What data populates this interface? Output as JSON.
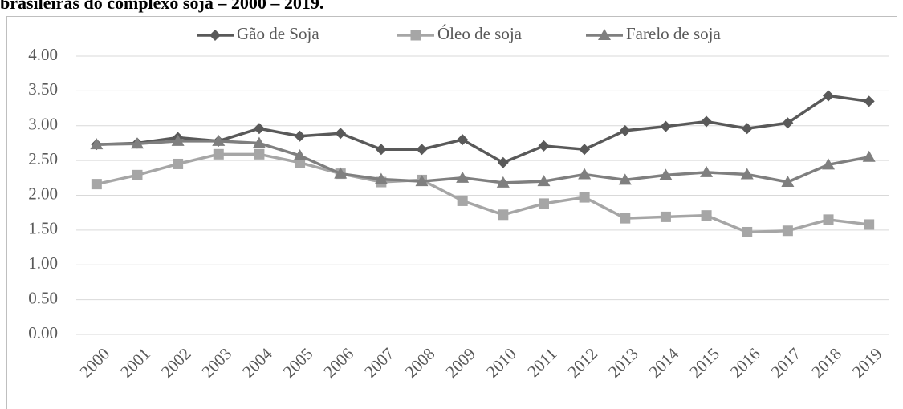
{
  "chart_data": {
    "type": "line",
    "title": "brasileiras do complexo soja – 2000 – 2019.",
    "categories": [
      "2000",
      "2001",
      "2002",
      "2003",
      "2004",
      "2005",
      "2006",
      "2007",
      "2008",
      "2009",
      "2010",
      "2011",
      "2012",
      "2013",
      "2014",
      "2015",
      "2016",
      "2017",
      "2018",
      "2019"
    ],
    "series": [
      {
        "name": "Gão de Soja",
        "color": "#595959",
        "marker": "diamond",
        "values": [
          2.73,
          2.75,
          2.83,
          2.78,
          2.96,
          2.85,
          2.89,
          2.66,
          2.66,
          2.8,
          2.47,
          2.71,
          2.66,
          2.93,
          2.99,
          3.06,
          2.96,
          3.04,
          3.43,
          3.35
        ]
      },
      {
        "name": "Óleo de soja",
        "color": "#a6a6a6",
        "marker": "square",
        "values": [
          2.16,
          2.29,
          2.45,
          2.59,
          2.59,
          2.47,
          2.31,
          2.19,
          2.22,
          1.92,
          1.72,
          1.88,
          1.97,
          1.67,
          1.69,
          1.71,
          1.47,
          1.49,
          1.65,
          1.58
        ]
      },
      {
        "name": "Farelo de soja",
        "color": "#7f7f7f",
        "marker": "triangle",
        "values": [
          2.73,
          2.74,
          2.78,
          2.78,
          2.75,
          2.57,
          2.31,
          2.23,
          2.2,
          2.25,
          2.18,
          2.2,
          2.3,
          2.22,
          2.29,
          2.33,
          2.3,
          2.19,
          2.44,
          2.55
        ]
      }
    ],
    "ylim": [
      0,
      4
    ],
    "yticks": [
      {
        "value": 0,
        "label": "0.00"
      },
      {
        "value": 0.5,
        "label": "0.50"
      },
      {
        "value": 1,
        "label": "1.00"
      },
      {
        "value": 1.5,
        "label": "1.50"
      },
      {
        "value": 2,
        "label": "2.00"
      },
      {
        "value": 2.5,
        "label": "2.50"
      },
      {
        "value": 3,
        "label": "3.00"
      },
      {
        "value": 3.5,
        "label": "3.50"
      },
      {
        "value": 4,
        "label": "4.00"
      }
    ],
    "grid": true,
    "legend": "top"
  }
}
